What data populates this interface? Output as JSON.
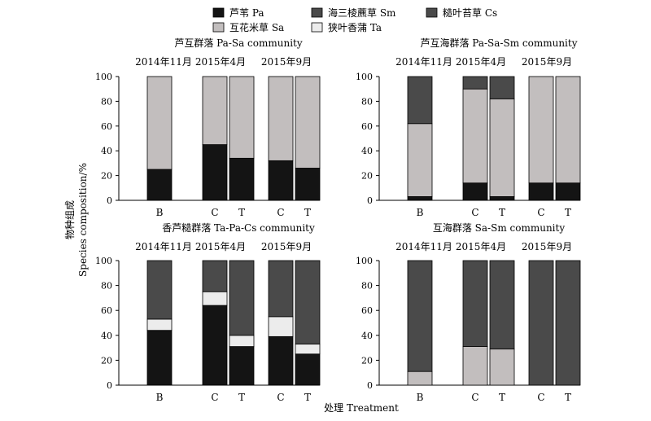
{
  "legend": [
    {
      "key": "Pa",
      "label": "芦苇 Pa",
      "color": "#141414"
    },
    {
      "key": "Sm",
      "label": "海三棱藨草 Sm",
      "color": "#4a4a4a"
    },
    {
      "key": "Cs",
      "label": "糙叶苔草 Cs",
      "color": "#4a4a4a"
    },
    {
      "key": "Sa",
      "label": "互花米草 Sa",
      "color": "#c2bebe"
    },
    {
      "key": "Ta",
      "label": "狭叶香蒲 Ta",
      "color": "#ececec"
    }
  ],
  "y_axis_label_zh": "物种组成",
  "y_axis_label_en": "Species composition/%",
  "x_axis_label": "处理 Treatment",
  "chart_data": [
    {
      "type": "bar",
      "stacked": true,
      "title": "芦互群落 Pa-Sa community",
      "groups": [
        "2014年11月",
        "2015年4月",
        "2015年9月"
      ],
      "categories": [
        "B",
        "C",
        "T",
        "C",
        "T"
      ],
      "category_groups": [
        0,
        1,
        1,
        2,
        2
      ],
      "ylim": [
        0,
        100
      ],
      "yticks": [
        0,
        20,
        40,
        60,
        80,
        100
      ],
      "series": [
        {
          "name": "芦苇 Pa",
          "values": [
            25,
            45,
            34,
            32,
            26
          ]
        },
        {
          "name": "互花米草 Sa",
          "values": [
            75,
            55,
            66,
            68,
            74
          ]
        }
      ]
    },
    {
      "type": "bar",
      "stacked": true,
      "title": "芦互海群落 Pa-Sa-Sm community",
      "groups": [
        "2014年11月",
        "2015年4月",
        "2015年9月"
      ],
      "categories": [
        "B",
        "C",
        "T",
        "C",
        "T"
      ],
      "category_groups": [
        0,
        1,
        1,
        2,
        2
      ],
      "ylim": [
        0,
        100
      ],
      "yticks": [
        0,
        20,
        40,
        60,
        80,
        100
      ],
      "series": [
        {
          "name": "芦苇 Pa",
          "values": [
            3,
            14,
            3,
            14,
            14
          ]
        },
        {
          "name": "互花米草 Sa",
          "values": [
            59,
            76,
            79,
            86,
            86
          ]
        },
        {
          "name": "海三棱藨草 Sm",
          "values": [
            38,
            10,
            18,
            0,
            0
          ]
        }
      ]
    },
    {
      "type": "bar",
      "stacked": true,
      "title": "香芦糙群落 Ta-Pa-Cs community",
      "groups": [
        "2014年11月",
        "2015年4月",
        "2015年9月"
      ],
      "categories": [
        "B",
        "C",
        "T",
        "C",
        "T"
      ],
      "category_groups": [
        0,
        1,
        1,
        2,
        2
      ],
      "ylim": [
        0,
        100
      ],
      "yticks": [
        0,
        20,
        40,
        60,
        80,
        100
      ],
      "series": [
        {
          "name": "芦苇 Pa",
          "values": [
            44,
            64,
            31,
            39,
            25
          ]
        },
        {
          "name": "狭叶香蒲 Ta",
          "values": [
            9,
            11,
            9,
            16,
            8
          ]
        },
        {
          "name": "糙叶苔草 Cs",
          "values": [
            47,
            25,
            60,
            45,
            67
          ]
        }
      ]
    },
    {
      "type": "bar",
      "stacked": true,
      "title": "互海群落 Sa-Sm community",
      "groups": [
        "2014年11月",
        "2015年4月",
        "2015年9月"
      ],
      "categories": [
        "B",
        "C",
        "T",
        "C",
        "T"
      ],
      "category_groups": [
        0,
        1,
        1,
        2,
        2
      ],
      "ylim": [
        0,
        100
      ],
      "yticks": [
        0,
        20,
        40,
        60,
        80,
        100
      ],
      "series": [
        {
          "name": "互花米草 Sa",
          "values": [
            11,
            31,
            29,
            0,
            0
          ]
        },
        {
          "name": "海三棱藨草 Sm",
          "values": [
            89,
            69,
            71,
            100,
            100
          ]
        }
      ]
    }
  ]
}
